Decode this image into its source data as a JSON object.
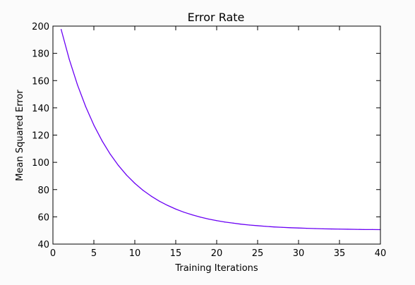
{
  "chart_data": {
    "type": "line",
    "title": "Error Rate",
    "xlabel": "Training Iterations",
    "ylabel": "Mean Squared Error",
    "xlim": [
      0,
      40
    ],
    "ylim": [
      40,
      200
    ],
    "xticks": [
      "0",
      "5",
      "10",
      "15",
      "20",
      "25",
      "30",
      "35",
      "40"
    ],
    "yticks": [
      "40",
      "60",
      "80",
      "100",
      "120",
      "140",
      "160",
      "180",
      "200"
    ],
    "grid": false,
    "series": [
      {
        "color": "#6a00f4",
        "x": [
          1,
          2,
          3,
          4,
          5,
          6,
          7,
          8,
          9,
          10,
          11,
          12,
          13,
          14,
          15,
          16,
          17,
          18,
          19,
          20,
          21,
          22,
          23,
          24,
          25,
          26,
          27,
          28,
          29,
          30,
          31,
          32,
          33,
          34,
          35,
          36,
          37,
          38,
          39,
          40
        ],
        "values": [
          197.6,
          175.5,
          156.8,
          140.9,
          127.3,
          115.8,
          106.0,
          97.7,
          90.6,
          84.6,
          79.5,
          75.2,
          71.5,
          68.4,
          65.7,
          63.4,
          61.5,
          59.8,
          58.4,
          57.2,
          56.2,
          55.4,
          54.6,
          54.0,
          53.5,
          53.0,
          52.6,
          52.3,
          52.0,
          51.8,
          51.6,
          51.4,
          51.2,
          51.1,
          51.0,
          50.9,
          50.8,
          50.7,
          50.7,
          50.6
        ]
      }
    ]
  }
}
